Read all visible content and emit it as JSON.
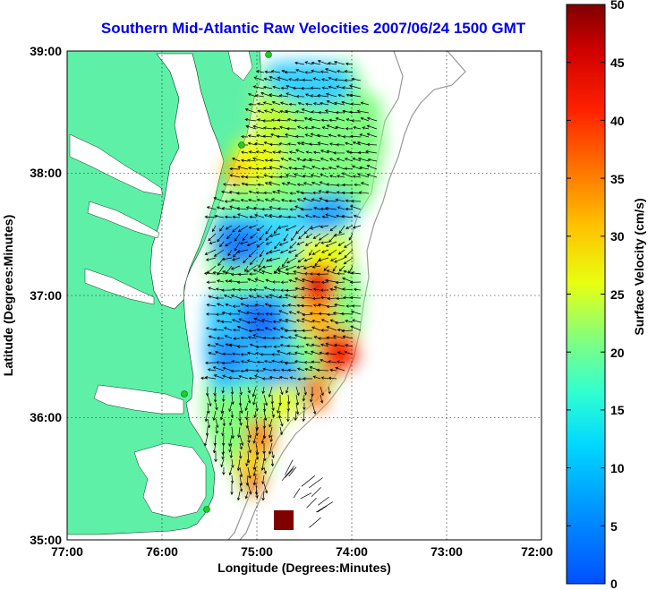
{
  "title": "Southern Mid-Atlantic Raw Velocities 2007/06/24 1500 GMT",
  "xlabel": "Longitude (Degrees:Minutes)",
  "ylabel": "Latitude (Degrees:Minutes)",
  "colorbar_label": "Surface Velocity (cm/s)",
  "x_ticks": [
    "77:00",
    "76:00",
    "75:00",
    "74:00",
    "73:00",
    "72:00"
  ],
  "y_ticks": [
    "39:00",
    "38:00",
    "37:00",
    "36:00",
    "35:00"
  ],
  "colorbar_ticks": [
    "0",
    "5",
    "10",
    "15",
    "20",
    "25",
    "30",
    "35",
    "40",
    "45",
    "50"
  ],
  "colors": {
    "land": "#5ff0a8",
    "title": "#0000ee",
    "bathymetry": "#999999",
    "station": "#22cc22"
  },
  "chart_data": {
    "type": "heatmap",
    "title": "Southern Mid-Atlantic Raw Velocities 2007/06/24 1500 GMT",
    "xlabel": "Longitude (Degrees:Minutes)",
    "ylabel": "Latitude (Degrees:Minutes)",
    "xlim": [
      -77,
      -72
    ],
    "ylim": [
      35,
      39
    ],
    "colorbar": {
      "label": "Surface Velocity (cm/s)",
      "range": [
        0,
        50
      ],
      "colormap": "jet"
    },
    "grid": true,
    "stations": [
      {
        "lon": -74.88,
        "lat": 38.97
      },
      {
        "lon": -75.15,
        "lat": 38.23
      },
      {
        "lon": -75.99,
        "lat": 36.21
      },
      {
        "lon": -75.52,
        "lat": 35.23
      }
    ]
  }
}
